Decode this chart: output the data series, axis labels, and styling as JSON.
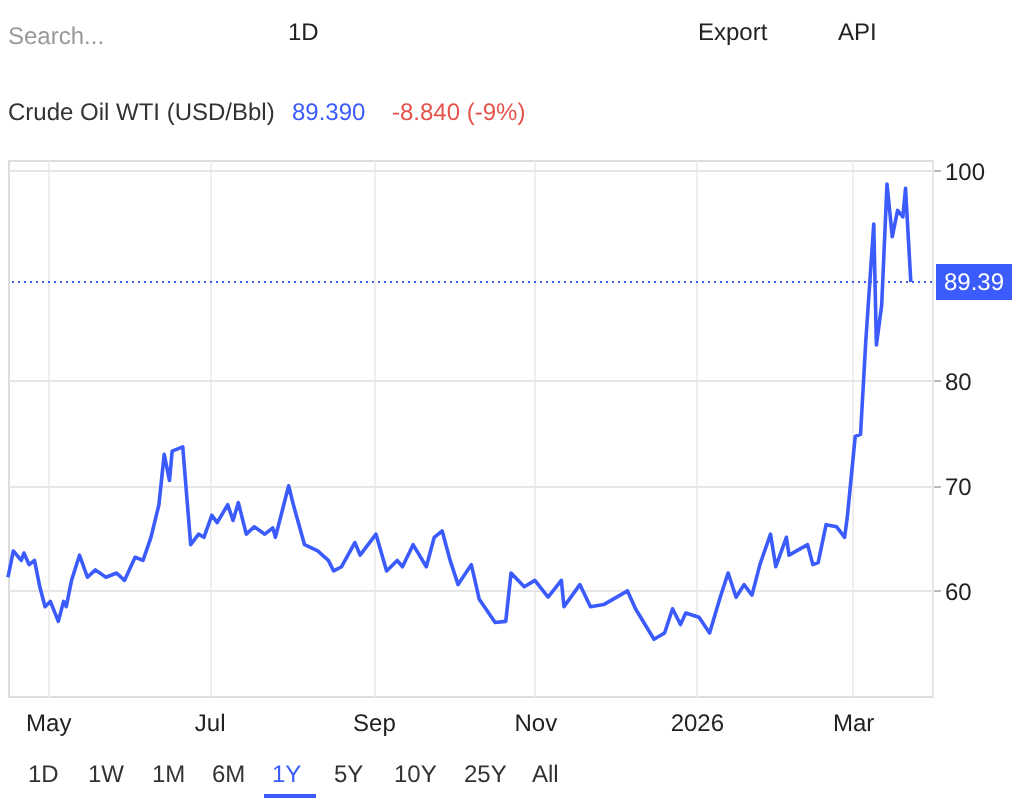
{
  "chart_data": {
    "type": "line",
    "title": "Crude Oil WTI (USD/Bbl)",
    "x": [
      "2025-04-16",
      "2025-04-18",
      "2025-04-21",
      "2025-04-22",
      "2025-04-24",
      "2025-04-26",
      "2025-04-28",
      "2025-04-30",
      "2025-05-02",
      "2025-05-05",
      "2025-05-07",
      "2025-05-08",
      "2025-05-10",
      "2025-05-13",
      "2025-05-16",
      "2025-05-19",
      "2025-05-23",
      "2025-05-27",
      "2025-05-30",
      "2025-06-03",
      "2025-06-06",
      "2025-06-09",
      "2025-06-12",
      "2025-06-14",
      "2025-06-16",
      "2025-06-17",
      "2025-06-21",
      "2025-06-24",
      "2025-06-27",
      "2025-06-29",
      "2025-07-02",
      "2025-07-04",
      "2025-07-08",
      "2025-07-10",
      "2025-07-12",
      "2025-07-15",
      "2025-07-18",
      "2025-07-22",
      "2025-07-25",
      "2025-07-26",
      "2025-07-31",
      "2025-08-02",
      "2025-08-06",
      "2025-08-11",
      "2025-08-15",
      "2025-08-17",
      "2025-08-20",
      "2025-08-25",
      "2025-08-27",
      "2025-09-02",
      "2025-09-06",
      "2025-09-10",
      "2025-09-12",
      "2025-09-16",
      "2025-09-21",
      "2025-09-24",
      "2025-09-27",
      "2025-09-30",
      "2025-10-03",
      "2025-10-08",
      "2025-10-11",
      "2025-10-17",
      "2025-10-21",
      "2025-10-23",
      "2025-10-28",
      "2025-11-01",
      "2025-11-06",
      "2025-11-11",
      "2025-11-12",
      "2025-11-18",
      "2025-11-22",
      "2025-11-27",
      "2025-12-06",
      "2025-12-09",
      "2025-12-16",
      "2025-12-20",
      "2025-12-23",
      "2025-12-26",
      "2025-12-28",
      "2026-01-02",
      "2026-01-06",
      "2026-01-10",
      "2026-01-13",
      "2026-01-16",
      "2026-01-19",
      "2026-01-22",
      "2026-01-25",
      "2026-01-29",
      "2026-01-31",
      "2026-02-04",
      "2026-02-05",
      "2026-02-12",
      "2026-02-14",
      "2026-02-16",
      "2026-02-19",
      "2026-02-23",
      "2026-02-26",
      "2026-02-27",
      "2026-03-02",
      "2026-03-04",
      "2026-03-06",
      "2026-03-09",
      "2026-03-10",
      "2026-03-12",
      "2026-03-14",
      "2026-03-16",
      "2026-03-18",
      "2026-03-20",
      "2026-03-21",
      "2026-03-23"
    ],
    "series": [
      {
        "color": "#3b5bfd",
        "values": [
          61.3,
          63.8,
          62.9,
          63.6,
          62.5,
          62.9,
          60.4,
          58.5,
          59,
          57.1,
          59,
          58.5,
          61,
          63.4,
          61.3,
          62,
          61.3,
          61.7,
          61,
          63.2,
          62.9,
          65.1,
          68.2,
          73,
          70.5,
          73.3,
          73.7,
          64.4,
          65.4,
          65.1,
          67.2,
          66.5,
          68.2,
          66.7,
          68.4,
          65.4,
          66.1,
          65.4,
          66,
          65.1,
          70,
          68,
          64.4,
          63.8,
          62.9,
          61.9,
          62.3,
          64.6,
          63.4,
          65.4,
          61.9,
          62.9,
          62.3,
          64.4,
          62.3,
          65.1,
          65.7,
          62.9,
          60.6,
          62.5,
          59.2,
          57,
          57.1,
          61.7,
          60.4,
          61,
          59.4,
          61,
          58.5,
          60.6,
          58.5,
          58.7,
          60,
          58.3,
          55.4,
          56,
          58.3,
          56.8,
          57.9,
          57.5,
          56,
          59.4,
          61.7,
          59.4,
          60.6,
          59.6,
          62.5,
          65.4,
          62.3,
          65.1,
          63.4,
          64.4,
          62.5,
          62.7,
          66.3,
          66.1,
          65.1,
          67,
          74.7,
          74.9,
          83.8,
          94.9,
          83.4,
          87.2,
          98.7,
          93.7,
          96.2,
          95.6,
          98.3,
          89.39
        ]
      }
    ],
    "xlim": [
      "2025-04-16",
      "2026-03-31"
    ],
    "xticks": [
      {
        "value": "2025-05-01",
        "label": "May"
      },
      {
        "value": "2025-07-01",
        "label": "Jul"
      },
      {
        "value": "2025-09-01",
        "label": "Sep"
      },
      {
        "value": "2025-11-01",
        "label": "Nov"
      },
      {
        "value": "2026-01-01",
        "label": "2026"
      },
      {
        "value": "2026-03-01",
        "label": "Mar"
      }
    ],
    "ylim": [
      50,
      101
    ],
    "yticks": [
      60,
      70,
      80,
      100
    ],
    "ref_lines": [
      {
        "axis": "y",
        "value": 89.39,
        "label": "89.39",
        "color": "#3b5bfd",
        "line_style": "dotted"
      }
    ],
    "annotations": [
      "89.390",
      "-8.840 (-9%)",
      "Search...",
      "1D",
      "Export",
      "API",
      "1D",
      "1W",
      "1M",
      "6M",
      "1Y",
      "5Y",
      "10Y",
      "25Y",
      "All"
    ],
    "grid": true,
    "marker": "none",
    "line_style": "solid"
  }
}
